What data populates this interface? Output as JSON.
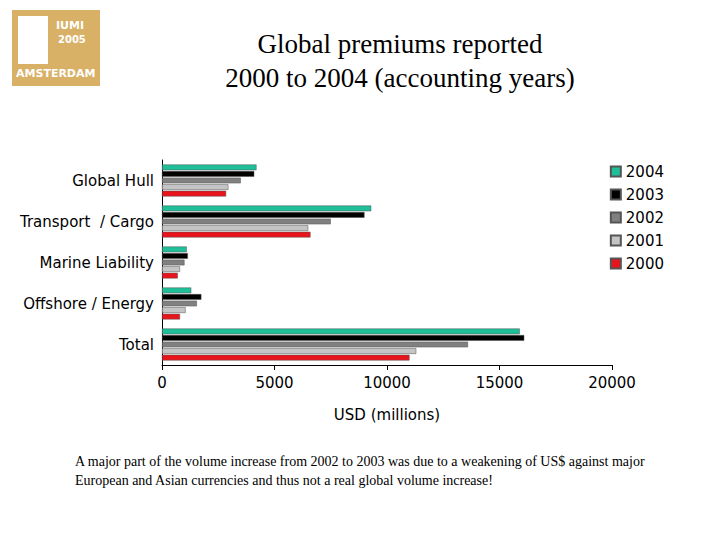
{
  "chart_data": {
    "type": "bar",
    "orientation": "horizontal",
    "title": "Global premiums reported\n2000 to 2004 (accounting years)",
    "x_label": "USD (millions)",
    "categories": [
      "Global Hull",
      "Transport  / Cargo",
      "Marine Liability",
      "Offshore / Energy",
      "Total"
    ],
    "series": [
      {
        "name": "2004",
        "color": "#1fbf9a",
        "values": [
          4200,
          9300,
          1100,
          1300,
          15900
        ]
      },
      {
        "name": "2003",
        "color": "#000000",
        "values": [
          4100,
          9000,
          1150,
          1750,
          16100
        ]
      },
      {
        "name": "2002",
        "color": "#808080",
        "values": [
          3500,
          7500,
          1000,
          1550,
          13600
        ]
      },
      {
        "name": "2001",
        "color": "#c4c4c4",
        "values": [
          2950,
          6500,
          800,
          1050,
          11300
        ]
      },
      {
        "name": "2000",
        "color": "#e8141c",
        "values": [
          2850,
          6600,
          700,
          800,
          11000
        ]
      }
    ],
    "xlim": [
      0,
      20000
    ],
    "xticks": [
      0,
      5000,
      10000,
      15000,
      20000
    ],
    "grid": false,
    "legend": "top-right",
    "annotations": [
      "IUMI",
      "2005",
      "AMSTERDAM",
      "A major part of the volume increase from 2002 to 2003 was due to a weakening of US$ against major European and Asian currencies and thus not a real global volume increase!"
    ]
  }
}
